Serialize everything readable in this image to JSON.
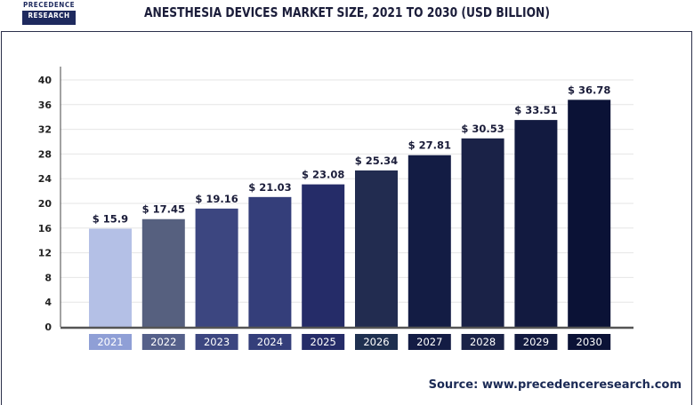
{
  "logo": {
    "line1": "PRECEDENCE",
    "line2": "RESEARCH"
  },
  "chart_data": {
    "type": "bar",
    "title": "ANESTHESIA DEVICES MARKET SIZE, 2021 TO 2030 (USD BILLION)",
    "categories": [
      "2021",
      "2022",
      "2023",
      "2024",
      "2025",
      "2026",
      "2027",
      "2028",
      "2029",
      "2030"
    ],
    "values": [
      15.9,
      17.45,
      19.16,
      21.03,
      23.08,
      25.34,
      27.81,
      30.53,
      33.51,
      36.78
    ],
    "data_labels": [
      "$ 15.9",
      "$ 17.45",
      "$ 19.16",
      "$ 21.03",
      "$ 23.08",
      "$ 25.34",
      "$ 27.81",
      "$ 30.53",
      "$ 33.51",
      "$ 36.78"
    ],
    "colors": [
      "#b4c0e6",
      "#56607f",
      "#3c4680",
      "#343e7a",
      "#252c68",
      "#222c50",
      "#131c44",
      "#1a2247",
      "#121a40",
      "#0b1236"
    ],
    "label_colors": [
      "#8f9fd6",
      "#55608a",
      "#3c4680",
      "#343e7a",
      "#252c68",
      "#1f3050",
      "#131c44",
      "#1a2247",
      "#121a40",
      "#0b1236"
    ],
    "ylim": [
      0,
      40
    ],
    "yticks": [
      0,
      4,
      8,
      12,
      16,
      20,
      24,
      28,
      32,
      36,
      40
    ],
    "grid": true,
    "xlabel": "",
    "ylabel": ""
  },
  "source": "Source: www.precedenceresearch.com"
}
